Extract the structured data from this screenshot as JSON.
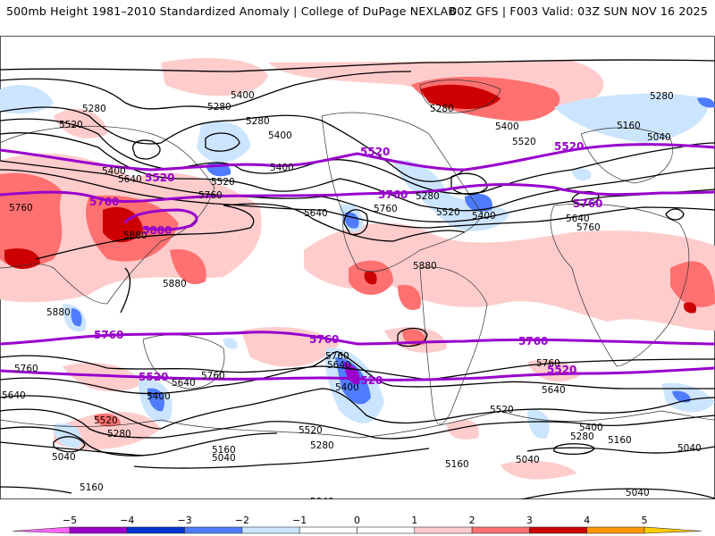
{
  "header": {
    "title_left": "500mb Height 1981–2010 Standardized Anomaly | College of DuPage NEXLAB",
    "title_right": "00Z GFS | F003 Valid: 03Z SUN NOV 16 2025"
  },
  "map": {
    "projection": "global cylindrical equidistant",
    "field": "500mb geopotential height (dam) with standardized anomaly shading",
    "contour_interval_label": "black contours every 120 m; purple highlighted contours 5520 and 5760",
    "black_contour_labels": [
      {
        "value": "5280",
        "region": "north-pacific"
      },
      {
        "value": "5400",
        "region": "north-pacific"
      },
      {
        "value": "5280",
        "region": "siberia"
      },
      {
        "value": "5520",
        "region": "east-asia"
      },
      {
        "value": "5280",
        "region": "bering-sea"
      },
      {
        "value": "5400",
        "region": "aleutians"
      },
      {
        "value": "5400",
        "region": "japan"
      },
      {
        "value": "5640",
        "region": "japan"
      },
      {
        "value": "5520",
        "region": "north-pacific-east"
      },
      {
        "value": "5760",
        "region": "north-pacific-east"
      },
      {
        "value": "5760",
        "region": "india"
      },
      {
        "value": "5880",
        "region": "east-china"
      },
      {
        "value": "5880",
        "region": "philippine-sea"
      },
      {
        "value": "5880",
        "region": "indian-ocean"
      },
      {
        "value": "5400",
        "region": "gulf-of-alaska"
      },
      {
        "value": "5640",
        "region": "northeast-pacific"
      },
      {
        "value": "5760",
        "region": "western-us"
      },
      {
        "value": "5280",
        "region": "hudson-bay"
      },
      {
        "value": "5520",
        "region": "eastern-us"
      },
      {
        "value": "5400",
        "region": "western-atlantic"
      },
      {
        "value": "5280",
        "region": "arctic"
      },
      {
        "value": "5400",
        "region": "greenland"
      },
      {
        "value": "5520",
        "region": "greenland"
      },
      {
        "value": "5880",
        "region": "caribbean"
      },
      {
        "value": "5280",
        "region": "arctic-east"
      },
      {
        "value": "5160",
        "region": "scandinavia"
      },
      {
        "value": "5040",
        "region": "northern-russia"
      },
      {
        "value": "5640",
        "region": "western-europe"
      },
      {
        "value": "5760",
        "region": "north-africa"
      },
      {
        "value": "5760",
        "region": "south-indian-ocean"
      },
      {
        "value": "5640",
        "region": "south-indian-ocean"
      },
      {
        "value": "5520",
        "region": "south-indian-ocean"
      },
      {
        "value": "5280",
        "region": "south-indian-ocean"
      },
      {
        "value": "5040",
        "region": "south-indian-ocean"
      },
      {
        "value": "5160",
        "region": "southern-ocean"
      },
      {
        "value": "5760",
        "region": "australia"
      },
      {
        "value": "5640",
        "region": "australia"
      },
      {
        "value": "5400",
        "region": "tasman-sea"
      },
      {
        "value": "5160",
        "region": "south-pacific"
      },
      {
        "value": "5040",
        "region": "south-pacific"
      },
      {
        "value": "5760",
        "region": "central-south-pacific"
      },
      {
        "value": "5640",
        "region": "central-south-pacific"
      },
      {
        "value": "5400",
        "region": "central-south-pacific"
      },
      {
        "value": "5520",
        "region": "south-pacific-east"
      },
      {
        "value": "5280",
        "region": "south-pacific-east"
      },
      {
        "value": "5040",
        "region": "antarctica-pacific"
      },
      {
        "value": "5160",
        "region": "antarctic-peninsula"
      },
      {
        "value": "5520",
        "region": "south-atlantic"
      },
      {
        "value": "5040",
        "region": "south-atlantic"
      },
      {
        "value": "5760",
        "region": "south-africa"
      },
      {
        "value": "5640",
        "region": "south-atlantic-east"
      },
      {
        "value": "5400",
        "region": "southern-ocean-east"
      },
      {
        "value": "5280",
        "region": "southern-ocean-east"
      },
      {
        "value": "5160",
        "region": "southern-ocean-east"
      },
      {
        "value": "5040",
        "region": "southern-ocean-east"
      },
      {
        "value": "5040",
        "region": "antarctica-east"
      }
    ],
    "purple_contour_labels": [
      {
        "value": "5520",
        "region": "japan"
      },
      {
        "value": "5760",
        "region": "east-china"
      },
      {
        "value": "5880",
        "region": "philippine-sea"
      },
      {
        "value": "5520",
        "region": "western-us"
      },
      {
        "value": "5760",
        "region": "southern-us"
      },
      {
        "value": "5520",
        "region": "atlantic"
      },
      {
        "value": "5760",
        "region": "north-africa"
      },
      {
        "value": "5760",
        "region": "south-indian-ocean"
      },
      {
        "value": "5520",
        "region": "south-indian-ocean"
      },
      {
        "value": "5760",
        "region": "central-south-pacific"
      },
      {
        "value": "5520",
        "region": "central-south-pacific"
      },
      {
        "value": "5760",
        "region": "south-atlantic"
      },
      {
        "value": "5520",
        "region": "south-atlantic"
      }
    ]
  },
  "legend": {
    "ticks": [
      "−5",
      "−4",
      "−3",
      "−2",
      "−1",
      "0",
      "1",
      "2",
      "3",
      "4",
      "5"
    ],
    "bins": [
      {
        "range": "< -5",
        "color": "#ff66ff"
      },
      {
        "range": "-5 to -4",
        "color": "#9900cc"
      },
      {
        "range": "-4 to -3",
        "color": "#0033cc"
      },
      {
        "range": "-3 to -2",
        "color": "#4f7cff"
      },
      {
        "range": "-2 to -1",
        "color": "#cce5ff"
      },
      {
        "range": "-1 to 0",
        "color": "#ffffff"
      },
      {
        "range": "0 to 1",
        "color": "#ffffff"
      },
      {
        "range": "1 to 2",
        "color": "#ffcccc"
      },
      {
        "range": "2 to 3",
        "color": "#ff7070"
      },
      {
        "range": "3 to 4",
        "color": "#cc0000"
      },
      {
        "range": "4 to 5",
        "color": "#ff9900"
      },
      {
        "range": "> 5",
        "color": "#ffcc00"
      }
    ]
  },
  "colors": {
    "purple_contour": "#9900cc",
    "black_contour": "#000000",
    "coastline": "#333333"
  }
}
